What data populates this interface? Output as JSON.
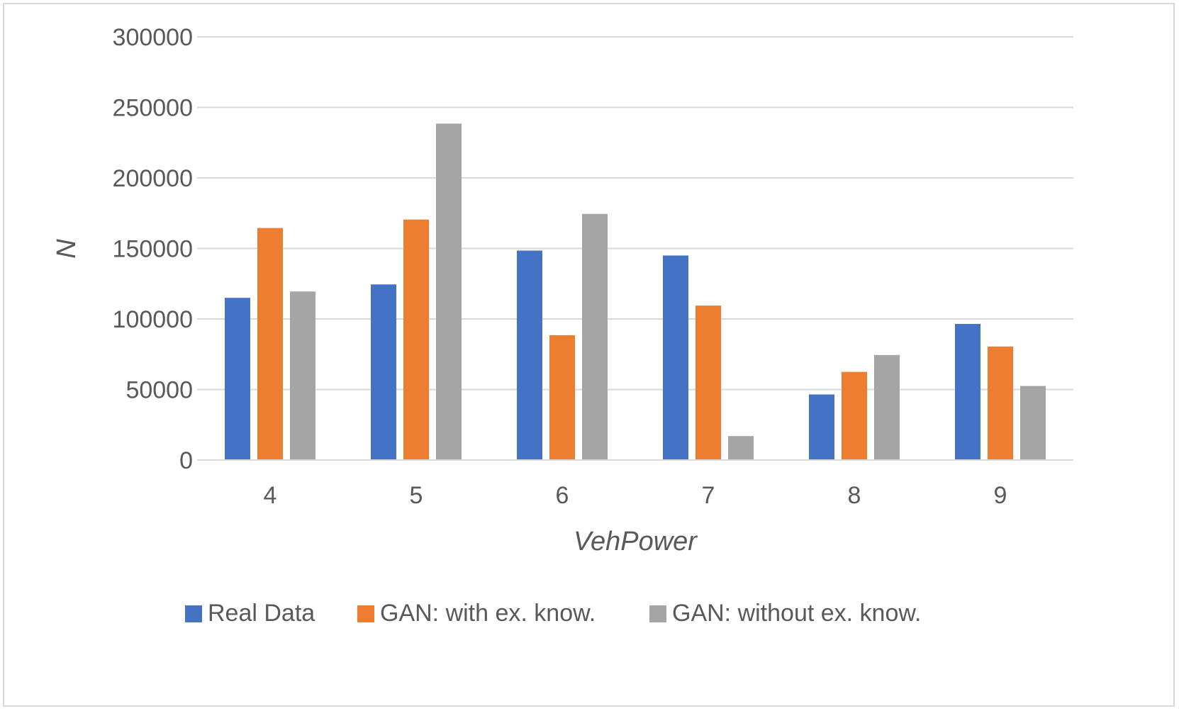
{
  "chart_data": {
    "type": "bar",
    "title": "",
    "xlabel": "VehPower",
    "ylabel": "N",
    "categories": [
      "4",
      "5",
      "6",
      "7",
      "8",
      "9"
    ],
    "series": [
      {
        "name": "Real Data",
        "color": "#4472c4",
        "values": [
          115000,
          124500,
          148500,
          145000,
          46500,
          96500
        ]
      },
      {
        "name": "GAN: with ex. know.",
        "color": "#ed7d31",
        "values": [
          164500,
          170500,
          88500,
          109500,
          62500,
          80500
        ]
      },
      {
        "name": "GAN: without ex. know.",
        "color": "#a5a5a5",
        "values": [
          119500,
          238500,
          174500,
          17000,
          74500,
          52500
        ]
      }
    ],
    "ylim": [
      0,
      300000
    ],
    "yticks": [
      0,
      50000,
      100000,
      150000,
      200000,
      250000,
      300000
    ],
    "grid": true,
    "gridline_color": "#d9d9d9",
    "legend_position": "bottom"
  }
}
